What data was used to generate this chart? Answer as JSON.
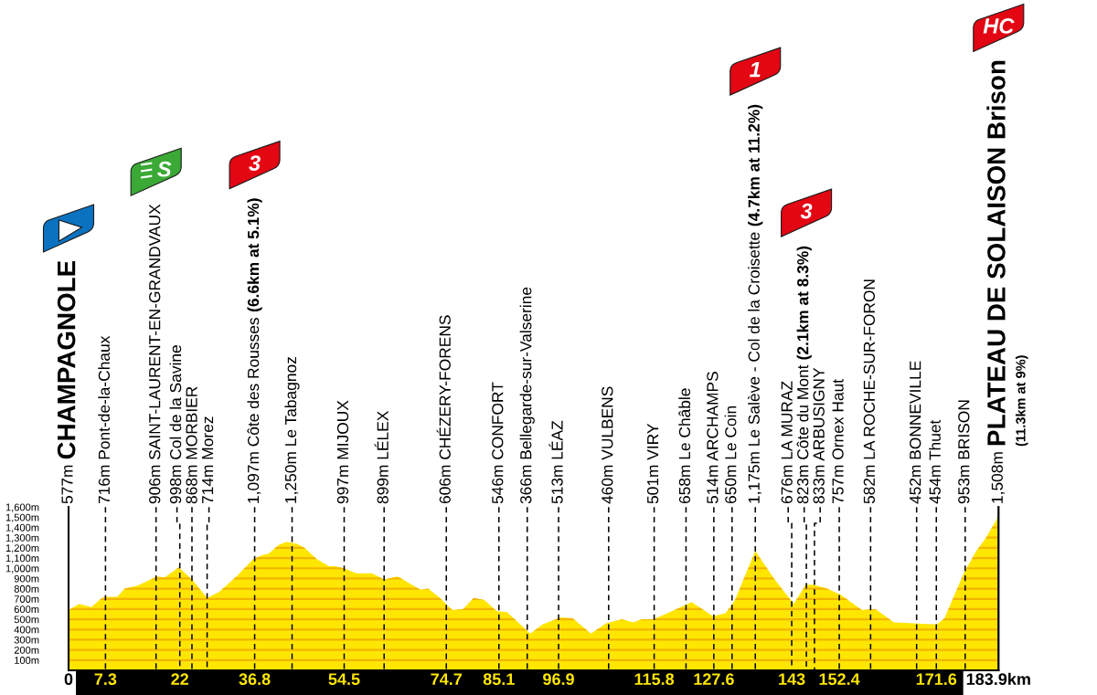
{
  "chart_data": {
    "type": "area",
    "grid": "y",
    "series": [
      {
        "color": "#ffe600",
        "x": [
          0,
          2.1,
          4.5,
          6.6,
          7.2,
          9.6,
          11.1,
          13.6,
          17.5,
          19.0,
          21.8,
          24.4,
          27.4,
          29.8,
          33.4,
          36.5,
          38.3,
          39.5,
          41.6,
          43.1,
          45.2,
          46.7,
          49.1,
          51.5,
          52.7,
          54.5,
          56.9,
          60.0,
          62.4,
          65.1,
          69.6,
          71.1,
          73.2,
          75.9,
          78.0,
          80.1,
          82.2,
          84.7,
          86.7,
          91.3,
          93.7,
          97.3,
          99.7,
          103.3,
          106.3,
          109.4,
          111.7,
          113.3,
          115.7,
          120.2,
          123.2,
          127.4,
          129.9,
          131.7,
          135.8,
          139.5,
          143.4,
          145.8,
          147.3,
          150.0,
          152.7,
          156.9,
          159.6,
          163.2,
          167.2,
          171.7,
          173.2,
          177.1,
          179.5,
          181.3,
          183.9
        ],
        "values": [
          590,
          650,
          620,
          710,
          720,
          720,
          800,
          830,
          920,
          910,
          1010,
          890,
          710,
          770,
          930,
          1090,
          1130,
          1140,
          1230,
          1260,
          1240,
          1200,
          1090,
          1020,
          1020,
          1000,
          950,
          950,
          890,
          920,
          790,
          800,
          720,
          590,
          600,
          710,
          690,
          580,
          570,
          360,
          450,
          520,
          510,
          360,
          460,
          500,
          470,
          500,
          500,
          600,
          670,
          530,
          560,
          680,
          1170,
          900,
          650,
          840,
          840,
          800,
          740,
          590,
          600,
          470,
          460,
          450,
          510,
          960,
          1170,
          1290,
          1510
        ]
      }
    ],
    "xlim": [
      0,
      183.9
    ],
    "xticks": [
      0,
      7.3,
      22,
      36.8,
      54.5,
      74.7,
      85.1,
      96.9,
      115.8,
      127.6,
      143,
      152.4,
      171.6,
      {
        "value": 183.9,
        "label": "183.9km"
      }
    ],
    "ylim": [
      0,
      1600
    ],
    "yticks": [
      {
        "value": 100,
        "label": "100m"
      },
      {
        "value": 200,
        "label": "200m"
      },
      {
        "value": 300,
        "label": "300m"
      },
      {
        "value": 400,
        "label": "400m"
      },
      {
        "value": 500,
        "label": "500m"
      },
      {
        "value": 600,
        "label": "600m"
      },
      {
        "value": 700,
        "label": "700m"
      },
      {
        "value": 800,
        "label": "800m"
      },
      {
        "value": 900,
        "label": "900m"
      },
      {
        "value": 1000,
        "label": "1,000m"
      },
      {
        "value": 1100,
        "label": "1,100m"
      },
      {
        "value": 1200,
        "label": "1,200m"
      },
      {
        "value": 1300,
        "label": "1,300m"
      },
      {
        "value": 1400,
        "label": "1,400m"
      },
      {
        "value": 1500,
        "label": "1,500m"
      },
      {
        "value": 1600,
        "label": "1,600m"
      }
    ],
    "ref_lines": [
      {
        "axis": "x",
        "value": 0,
        "label": "577m CHAMPAGNOLE",
        "line_style": "solid"
      },
      {
        "axis": "x",
        "value": 7.3,
        "label": "716m Pont-de-la-Chaux",
        "line_style": "dashed"
      },
      {
        "axis": "x",
        "value": 17.3,
        "label": "906m SAINT-LAURENT-EN-GRANDVAUX",
        "line_style": "dashed"
      },
      {
        "axis": "x",
        "value": 22,
        "label": "998m Col de la Savine",
        "line_style": "dashed"
      },
      {
        "axis": "x",
        "value": 24.4,
        "label": "868m MORBIER",
        "line_style": "dashed"
      },
      {
        "axis": "x",
        "value": 27.4,
        "label": "714m Morez",
        "line_style": "dashed"
      },
      {
        "axis": "x",
        "value": 36.8,
        "label": "1,097m Côte des Rousses (6.6km at 5.1%)",
        "line_style": "dashed"
      },
      {
        "axis": "x",
        "value": 44.2,
        "label": "1,250m Le Tabagnoz",
        "line_style": "dashed"
      },
      {
        "axis": "x",
        "value": 54.5,
        "label": "997m MIJOUX",
        "line_style": "dashed"
      },
      {
        "axis": "x",
        "value": 62.4,
        "label": "899m LÉLEX",
        "line_style": "dashed"
      },
      {
        "axis": "x",
        "value": 74.7,
        "label": "606m CHÉZERY-FORENS",
        "line_style": "dashed"
      },
      {
        "axis": "x",
        "value": 85.1,
        "label": "546m CONFORT",
        "line_style": "dashed"
      },
      {
        "axis": "x",
        "value": 90.7,
        "label": "366m Bellegarde-sur-Valserine",
        "line_style": "dashed"
      },
      {
        "axis": "x",
        "value": 96.9,
        "label": "513m LÉAZ",
        "line_style": "dashed"
      },
      {
        "axis": "x",
        "value": 106.8,
        "label": "460m VULBENS",
        "line_style": "dashed"
      },
      {
        "axis": "x",
        "value": 115.8,
        "label": "501m VIRY",
        "line_style": "dashed"
      },
      {
        "axis": "x",
        "value": 122.1,
        "label": "658m Le Châble",
        "line_style": "dashed"
      },
      {
        "axis": "x",
        "value": 127.6,
        "label": "514m ARCHAMPS",
        "line_style": "dashed"
      },
      {
        "axis": "x",
        "value": 131.2,
        "label": "650m Le Coin",
        "line_style": "dashed"
      },
      {
        "axis": "x",
        "value": 135.8,
        "label": "1,175m Le Salève - Col de la Croisette (4.7km at 11.2%)",
        "line_style": "dashed"
      },
      {
        "axis": "x",
        "value": 143,
        "label": "676m LA MURAZ",
        "line_style": "dashed"
      },
      {
        "axis": "x",
        "value": 145.9,
        "label": "823m Côte du Mont (2.1km at 8.3%)",
        "line_style": "dashed"
      },
      {
        "axis": "x",
        "value": 147.5,
        "label": "833m ARBUSIGNY",
        "line_style": "dashed"
      },
      {
        "axis": "x",
        "value": 152.4,
        "label": "757m Ornex Haut",
        "line_style": "dashed"
      },
      {
        "axis": "x",
        "value": 158.6,
        "label": "582m LA ROCHE-SUR-FORON",
        "line_style": "dashed"
      },
      {
        "axis": "x",
        "value": 167.7,
        "label": "452m BONNEVILLE",
        "line_style": "dashed"
      },
      {
        "axis": "x",
        "value": 171.6,
        "label": "454m Thuet",
        "line_style": "dashed"
      },
      {
        "axis": "x",
        "value": 177.3,
        "label": "953m BRISON",
        "line_style": "dashed"
      },
      {
        "axis": "x",
        "value": 183.9,
        "label": "1,508m PLATEAU DE SOLAISON Brison\n(11.3km at 9%)",
        "line_style": "solid"
      }
    ],
    "annotations": [
      "S",
      "3",
      "1",
      "3",
      "HC"
    ]
  }
}
